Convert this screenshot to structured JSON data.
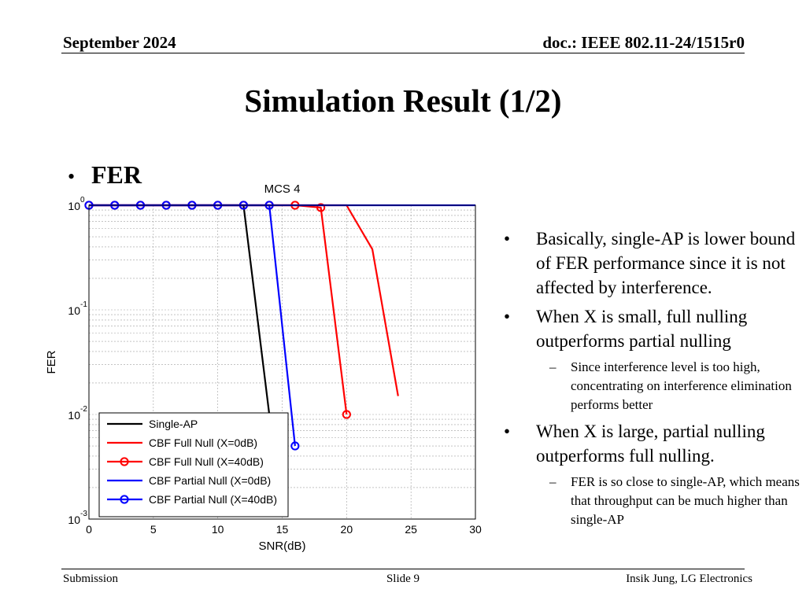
{
  "header": {
    "date": "September 2024",
    "doc": "doc.: IEEE 802.11-24/1515r0"
  },
  "title": "Simulation Result (1/2)",
  "bullet": {
    "marker": "•",
    "label": "FER"
  },
  "notes": [
    {
      "level": 1,
      "marker": "•",
      "text": "Basically, single-AP is lower bound of FER performance since it is not affected by interference."
    },
    {
      "level": 1,
      "marker": "•",
      "text": "When X is small, full nulling outperforms partial nulling"
    },
    {
      "level": 2,
      "marker": "–",
      "text": "Since interference level is too high, concentrating on interference elimination performs better"
    },
    {
      "level": 1,
      "marker": "•",
      "text": "When X is large, partial nulling outperforms full nulling."
    },
    {
      "level": 2,
      "marker": "–",
      "text": "FER is so close to single-AP, which means that throughput can be much higher than single-AP"
    }
  ],
  "footer": {
    "left": "Submission",
    "center": "Slide 9",
    "right": "Insik Jung, LG Electronics"
  },
  "chart_data": {
    "type": "line",
    "title": "MCS 4",
    "xlabel": "SNR(dB)",
    "ylabel": "FER",
    "xlim": [
      0,
      30
    ],
    "ylim": [
      0.001,
      1
    ],
    "yscale": "log",
    "grid": true,
    "legend_position": "bottom-left",
    "x_ticks": [
      0,
      5,
      10,
      15,
      20,
      25,
      30
    ],
    "y_ticks": [
      {
        "value": 1,
        "base": "10",
        "exp": "0"
      },
      {
        "value": 0.1,
        "base": "10",
        "exp": "-1"
      },
      {
        "value": 0.01,
        "base": "10",
        "exp": "-2"
      },
      {
        "value": 0.001,
        "base": "10",
        "exp": "-3"
      }
    ],
    "series": [
      {
        "name": "Single-AP",
        "color": "#000000",
        "marker": "none",
        "x": [
          0,
          12,
          14
        ],
        "y": [
          1,
          1,
          0.01
        ]
      },
      {
        "name": "CBF Full Null (X=0dB)",
        "color": "#ff0000",
        "marker": "none",
        "x": [
          0,
          20,
          22,
          24
        ],
        "y": [
          1,
          1,
          0.38,
          0.015
        ]
      },
      {
        "name": "CBF Full Null (X=40dB)",
        "color": "#ff0000",
        "marker": "circle",
        "x": [
          0,
          2,
          4,
          6,
          8,
          10,
          12,
          14,
          16,
          18,
          20
        ],
        "y": [
          1,
          1,
          1,
          1,
          1,
          1,
          1,
          1,
          1,
          0.95,
          0.01
        ]
      },
      {
        "name": "CBF Partial Null (X=0dB)",
        "color": "#0000ff",
        "marker": "none",
        "x": [
          0,
          30
        ],
        "y": [
          1,
          1
        ]
      },
      {
        "name": "CBF Partial Null (X=40dB)",
        "color": "#0000ff",
        "marker": "circle",
        "x": [
          0,
          2,
          4,
          6,
          8,
          10,
          12,
          14,
          16
        ],
        "y": [
          1,
          1,
          1,
          1,
          1,
          1,
          1,
          1,
          0.005
        ]
      }
    ]
  }
}
